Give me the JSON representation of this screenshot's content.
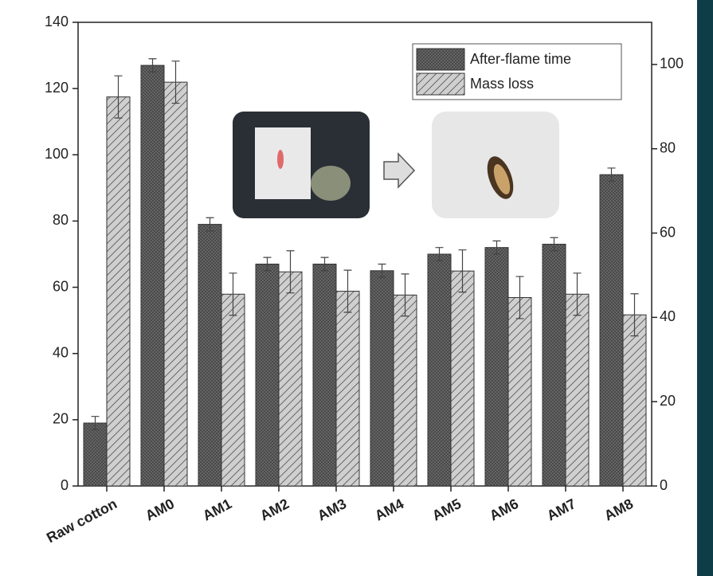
{
  "chart_data": {
    "type": "bar",
    "categories": [
      "Raw cotton",
      "AM0",
      "AM1",
      "AM2",
      "AM3",
      "AM4",
      "AM5",
      "AM6",
      "AM7",
      "AM8"
    ],
    "series": [
      {
        "name": "After-flame time",
        "color": "#6b6b6b",
        "values": [
          19,
          127,
          79,
          67,
          67,
          65,
          70,
          72,
          73,
          94
        ],
        "errors": [
          2,
          2,
          2,
          2,
          2,
          2,
          2,
          2,
          2,
          2
        ]
      },
      {
        "name": "Mass loss",
        "color": "#cfcfcf",
        "axis": "y2",
        "values": [
          92.3,
          95.8,
          45.5,
          50.8,
          46.2,
          45.3,
          51,
          44.7,
          45.5,
          40.6
        ],
        "errors": [
          5,
          5,
          5,
          5,
          5,
          5,
          5,
          5,
          5,
          5
        ]
      }
    ],
    "ylim": [
      0,
      140
    ],
    "yticks": [
      0,
      20,
      40,
      60,
      80,
      100,
      120,
      140
    ],
    "y2lim": [
      0,
      110
    ],
    "y2ticks": [
      0,
      20,
      40,
      60,
      80,
      100
    ],
    "legend": "upper-right"
  }
}
